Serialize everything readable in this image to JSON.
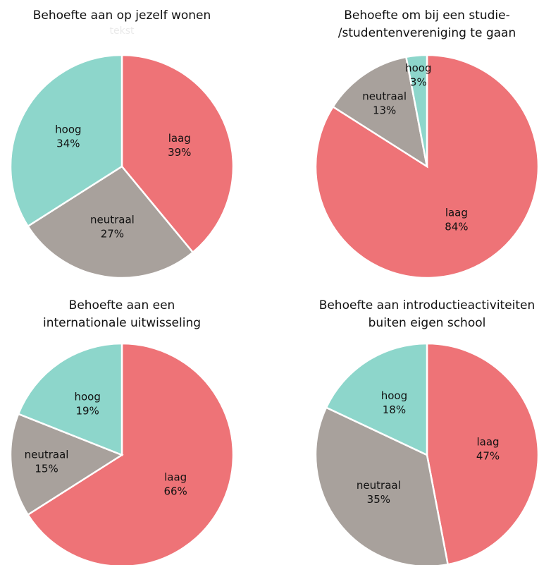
{
  "chart_data": [
    {
      "type": "pie",
      "title": [
        "Behoefte aan op jezelf wonen"
      ],
      "subtitle": "tekst",
      "categories": [
        "laag",
        "neutraal",
        "hoog"
      ],
      "values": [
        39,
        27,
        34
      ],
      "value_labels": [
        "39%",
        "27%",
        "34%"
      ],
      "colors": [
        "#ee7377",
        "#a8a19c",
        "#8dd6cb"
      ]
    },
    {
      "type": "pie",
      "title": [
        "Behoefte om bij een studie-",
        "/studentenvereniging te gaan"
      ],
      "categories": [
        "laag",
        "neutraal",
        "hoog"
      ],
      "values": [
        84,
        13,
        3
      ],
      "value_labels": [
        "84%",
        "13%",
        "3%"
      ],
      "colors": [
        "#ee7377",
        "#a8a19c",
        "#8dd6cb"
      ]
    },
    {
      "type": "pie",
      "title": [
        "Behoefte aan een",
        "internationale uitwisseling"
      ],
      "categories": [
        "laag",
        "neutraal",
        "hoog"
      ],
      "values": [
        66,
        15,
        19
      ],
      "value_labels": [
        "66%",
        "15%",
        "19%"
      ],
      "colors": [
        "#ee7377",
        "#a8a19c",
        "#8dd6cb"
      ]
    },
    {
      "type": "pie",
      "title": [
        "Behoefte aan introductieactiviteiten",
        "buiten eigen school"
      ],
      "categories": [
        "laag",
        "neutraal",
        "hoog"
      ],
      "values": [
        47,
        35,
        18
      ],
      "value_labels": [
        "47%",
        "35%",
        "18%"
      ],
      "colors": [
        "#ee7377",
        "#a8a19c",
        "#8dd6cb"
      ]
    }
  ]
}
